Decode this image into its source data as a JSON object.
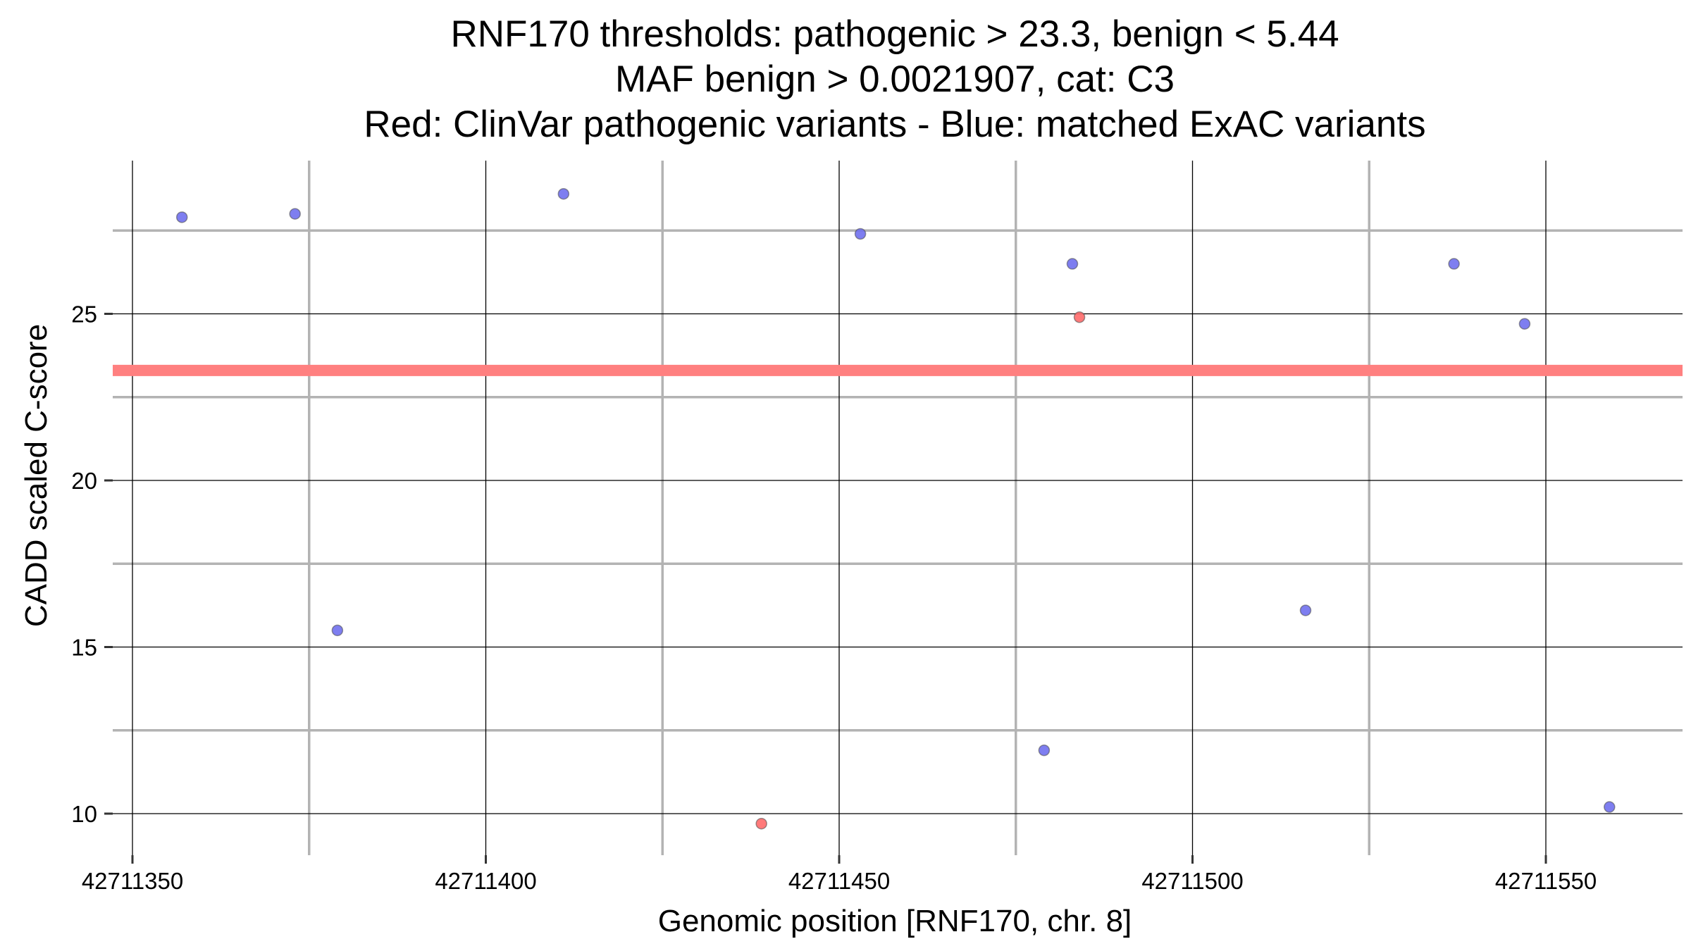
{
  "chart_data": {
    "type": "scatter",
    "title_lines": [
      "RNF170 thresholds: pathogenic > 23.3, benign < 5.44",
      "MAF benign > 0.0021907, cat: C3",
      "Red: ClinVar pathogenic variants - Blue: matched ExAC variants"
    ],
    "xlabel": "Genomic position [RNF170, chr. 8]",
    "ylabel": "CADD scaled C-score",
    "xlim": [
      42711349,
      42711569
    ],
    "ylim": [
      8.8,
      28.9
    ],
    "xticks": [
      42711350,
      42711400,
      42711450,
      42711500,
      42711550
    ],
    "xtick_labels": [
      "42711350",
      "42711400",
      "42711450",
      "42711500",
      "42711550"
    ],
    "xminor": [
      42711375,
      42711425,
      42711475,
      42711525
    ],
    "yticks": [
      10,
      15,
      20,
      25
    ],
    "ytick_labels": [
      "10",
      "15",
      "20",
      "25"
    ],
    "yminor": [
      12.5,
      17.5,
      22.5,
      27.5
    ],
    "threshold": {
      "label": "pathogenic threshold",
      "value": 23.3,
      "color": "#ff8080"
    },
    "series": [
      {
        "name": "ClinVar pathogenic variants",
        "color": "#ff6b6b",
        "points": [
          {
            "x": 42711439,
            "y": 9.7
          },
          {
            "x": 42711484,
            "y": 24.9
          }
        ]
      },
      {
        "name": "matched ExAC variants",
        "color": "#7070ee",
        "points": [
          {
            "x": 42711357,
            "y": 27.9
          },
          {
            "x": 42711373,
            "y": 28.0
          },
          {
            "x": 42711379,
            "y": 15.5
          },
          {
            "x": 42711411,
            "y": 28.6
          },
          {
            "x": 42711453,
            "y": 27.4
          },
          {
            "x": 42711479,
            "y": 11.9
          },
          {
            "x": 42711483,
            "y": 26.5
          },
          {
            "x": 42711516,
            "y": 16.1
          },
          {
            "x": 42711537,
            "y": 26.5
          },
          {
            "x": 42711547,
            "y": 24.7
          },
          {
            "x": 42711559,
            "y": 10.2
          }
        ]
      }
    ],
    "grid": true
  }
}
